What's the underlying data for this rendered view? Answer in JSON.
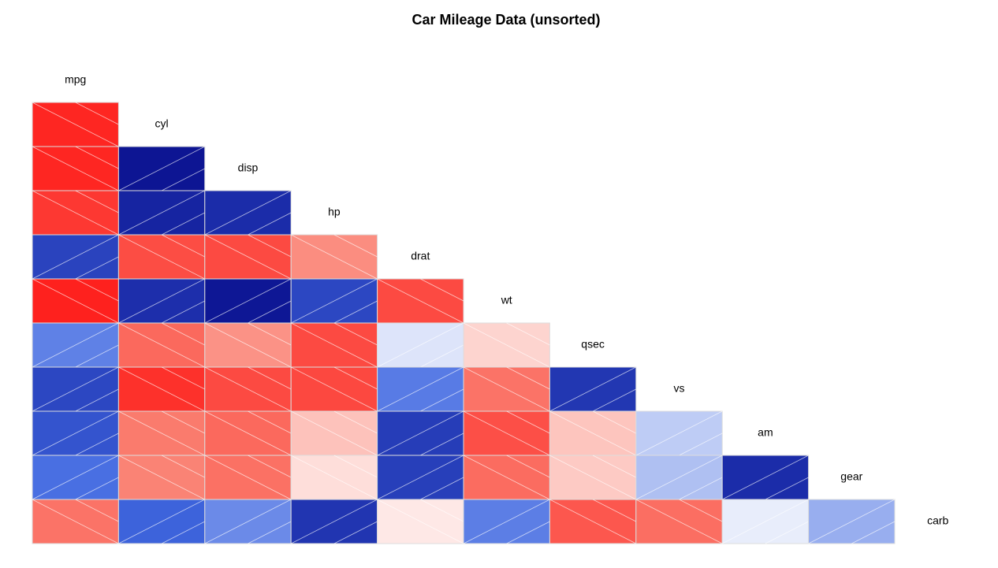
{
  "chart_data": {
    "type": "corrgram",
    "title": "Car Mileage Data (unsorted)",
    "variables": [
      "mpg",
      "cyl",
      "disp",
      "hp",
      "drat",
      "wt",
      "qsec",
      "vs",
      "am",
      "gear",
      "carb"
    ],
    "values": [
      [],
      [
        -0.85
      ],
      [
        -0.85,
        0.9
      ],
      [
        -0.78,
        0.83,
        0.79
      ],
      [
        0.68,
        -0.7,
        -0.71,
        -0.45
      ],
      [
        -0.87,
        0.78,
        0.89,
        0.66,
        -0.71
      ],
      [
        0.42,
        -0.59,
        -0.43,
        -0.71,
        0.09,
        -0.17
      ],
      [
        0.66,
        -0.81,
        -0.71,
        -0.72,
        0.44,
        -0.55,
        0.74
      ],
      [
        0.6,
        -0.52,
        -0.59,
        -0.24,
        0.71,
        -0.69,
        -0.23,
        0.17
      ],
      [
        0.48,
        -0.49,
        -0.56,
        -0.13,
        0.7,
        -0.58,
        -0.21,
        0.21,
        0.79
      ],
      [
        -0.55,
        0.53,
        0.39,
        0.75,
        -0.09,
        0.43,
        -0.66,
        -0.57,
        0.06,
        0.27
      ]
    ],
    "colors": [
      "#ff0000",
      "#fa8072",
      "#ffffff",
      "#4169e1",
      "#000080"
    ]
  }
}
